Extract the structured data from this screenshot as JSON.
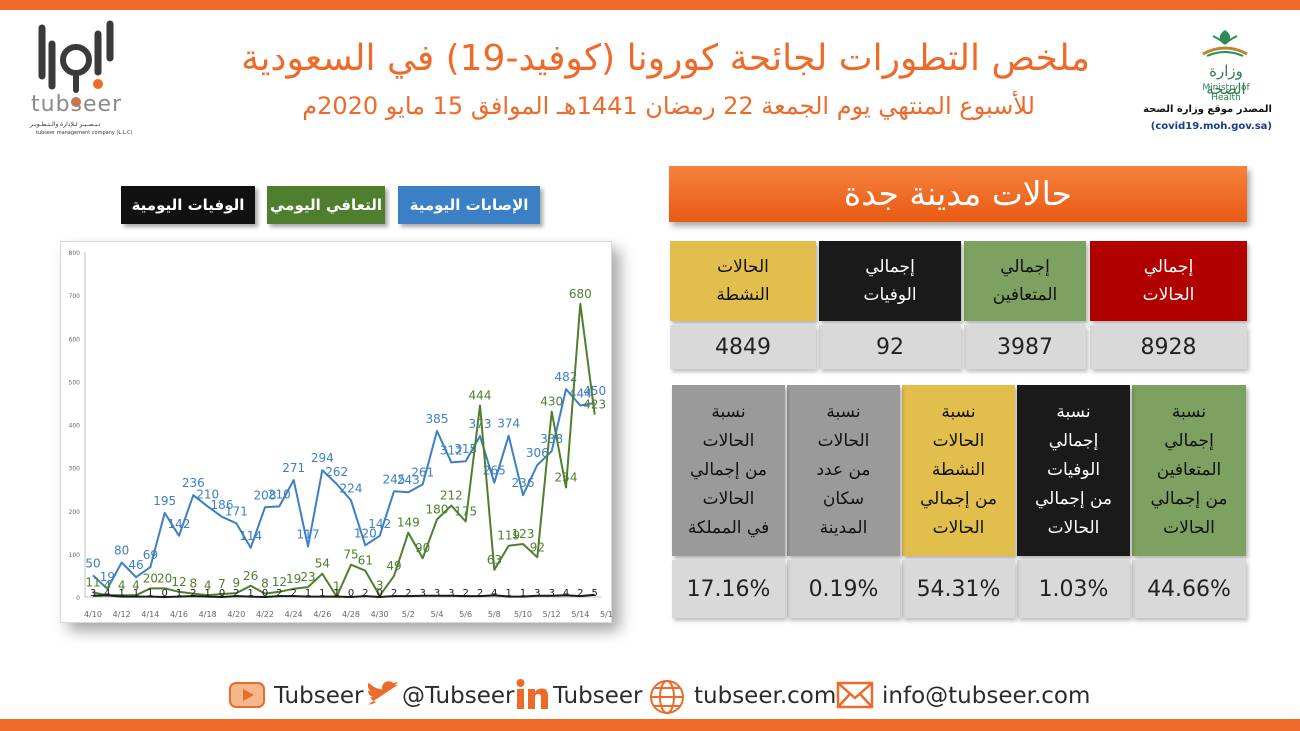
{
  "header": {
    "title": "ملخص التطورات لجائحة كورونا (كوفيد-19) في السعودية",
    "subtitle": "للأسبوع المنتهي يوم الجمعة 22 رمضان 1441هـ الموافق 15 مايو 2020م"
  },
  "brand": {
    "name": "tubseer",
    "tagline": "تـبـصـيـر لـلإدارة والـتـطـويـر",
    "tagline_en": "tubseer management company (L.L.C)"
  },
  "moh": {
    "name_ar": "وزارة الصحة",
    "name_en": "Ministry of Health",
    "source_label": "المصدر موقع وزارة الصحة",
    "source_url": "(covid19.moh.gov.sa)"
  },
  "legend": {
    "infections": "الإصابات اليومية",
    "recoveries": "التعافي اليومي",
    "deaths": "الوفيات اليومية"
  },
  "city": {
    "title": "حالات مدينة جدة",
    "totals": [
      {
        "label_line1": "إجمالي",
        "label_line2": "الحالات",
        "value": "8928",
        "color": "#b00000",
        "text": "#ffffff"
      },
      {
        "label_line1": "إجمالي",
        "label_line2": "المتعافين",
        "value": "3987",
        "color": "#7da160",
        "text": "#111111"
      },
      {
        "label_line1": "إجمالي",
        "label_line2": "الوفيات",
        "value": "92",
        "color": "#1a1a1a",
        "text": "#ffffff"
      },
      {
        "label_line1": "الحالات",
        "label_line2": "النشطة",
        "value": "4849",
        "color": "#e2be4c",
        "text": "#111111"
      }
    ],
    "ratios": [
      {
        "lines": [
          "نسبة",
          "إجمالي",
          "المتعافين",
          "من إجمالي",
          "الحالات"
        ],
        "value": "44.66%",
        "color": "#7da160",
        "text": "#111111"
      },
      {
        "lines": [
          "نسبة",
          "إجمالي الوفيات",
          "من إجمالي",
          "الحالات"
        ],
        "value": "1.03%",
        "color": "#1a1a1a",
        "text": "#ffffff"
      },
      {
        "lines": [
          "نسبة",
          "الحالات",
          "النشطة",
          "من إجمالي",
          "الحالات"
        ],
        "value": "54.31%",
        "color": "#e2be4c",
        "text": "#111111"
      },
      {
        "lines": [
          "نسبة",
          "الحالات",
          "من عدد",
          "سكان",
          "المدينة"
        ],
        "value": "0.19%",
        "color": "#9a9a9a",
        "text": "#111111"
      },
      {
        "lines": [
          "نسبة",
          "الحالات",
          "من إجمالي",
          "الحالات",
          "في المملكة"
        ],
        "value": "17.16%",
        "color": "#9a9a9a",
        "text": "#111111"
      }
    ]
  },
  "footer": {
    "youtube": "Tubseer",
    "twitter": "@Tubseer",
    "linkedin": "Tubseer",
    "website": "tubseer.com",
    "email": "info@tubseer.com",
    "icon_color": "#ee6a2a"
  },
  "chart_data": {
    "type": "line",
    "x_ticks": [
      "4/10",
      "4/12",
      "4/14",
      "4/16",
      "4/18",
      "4/20",
      "4/22",
      "4/24",
      "4/26",
      "4/28",
      "4/30",
      "5/2",
      "5/4",
      "5/6",
      "5/8",
      "5/10",
      "5/12",
      "5/14",
      "5/16"
    ],
    "y_ticks": [
      "0",
      "100",
      "200",
      "300",
      "400",
      "500",
      "600",
      "700",
      "800"
    ],
    "ylim": [
      0,
      800
    ],
    "dates": [
      "4/10",
      "4/11",
      "4/12",
      "4/13",
      "4/14",
      "4/15",
      "4/16",
      "4/17",
      "4/18",
      "4/19",
      "4/20",
      "4/21",
      "4/22",
      "4/23",
      "4/24",
      "4/25",
      "4/26",
      "4/27",
      "4/28",
      "4/29",
      "4/30",
      "5/1",
      "5/2",
      "5/3",
      "5/4",
      "5/5",
      "5/6",
      "5/7",
      "5/8",
      "5/9",
      "5/10",
      "5/11",
      "5/12",
      "5/13",
      "5/14",
      "5/15"
    ],
    "series": [
      {
        "name": "الإصابات اليومية",
        "color": "#3b7fc4",
        "values": [
          50,
          19,
          80,
          46,
          69,
          195,
          142,
          236,
          210,
          186,
          171,
          114,
          208,
          210,
          271,
          117,
          294,
          262,
          224,
          120,
          142,
          245,
          243,
          261,
          385,
          312,
          315,
          373,
          265,
          374,
          236,
          306,
          338,
          482,
          444,
          450
        ]
      },
      {
        "name": "التعافي اليومي",
        "color": "#4f7f2e",
        "values": [
          11,
          4,
          4,
          4,
          20,
          20,
          12,
          8,
          4,
          7,
          9,
          26,
          8,
          12,
          19,
          23,
          54,
          1,
          75,
          61,
          3,
          49,
          149,
          90,
          180,
          212,
          175,
          444,
          63,
          119,
          123,
          92,
          430,
          254,
          680,
          423
        ]
      },
      {
        "name": "الوفيات اليومية",
        "color": "#1a1a1a",
        "values": [
          3,
          4,
          1,
          1,
          1,
          0,
          1,
          2,
          1,
          0,
          2,
          1,
          0,
          2,
          2,
          1,
          1,
          1,
          0,
          2,
          0,
          2,
          2,
          3,
          3,
          3,
          2,
          2,
          4,
          1,
          1,
          3,
          3,
          4,
          2,
          5
        ]
      }
    ]
  }
}
